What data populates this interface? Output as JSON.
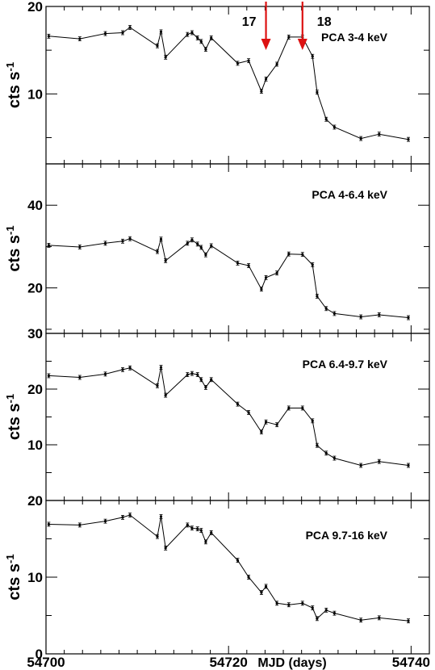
{
  "chart_data": {
    "type": "line",
    "x_axis": {
      "label": "MJD (days)",
      "range": [
        54700,
        54742
      ],
      "tick_labels": [
        "54700",
        "54720",
        "54740"
      ],
      "ticks": [
        54700,
        54720,
        54740
      ]
    },
    "x": [
      54700.3,
      54703.7,
      54706.5,
      54708.4,
      54709.2,
      54712.2,
      54712.6,
      54713.1,
      54715.5,
      54716.0,
      54716.6,
      54717.0,
      54717.5,
      54718.1,
      54721.0,
      54722.2,
      54723.6,
      54724.1,
      54725.3,
      54726.6,
      54728.1,
      54729.2,
      54729.7,
      54730.7,
      54731.6,
      54734.5,
      54736.5,
      54739.7
    ],
    "arrows": [
      {
        "label": "17",
        "x": 54724.1,
        "color": "#dd1111"
      },
      {
        "label": "18",
        "x": 54728.1,
        "color": "#dd1111"
      }
    ],
    "panels": [
      {
        "label": "PCA 3-4 keV",
        "ylabel": "cts s",
        "ylabel_exp": "-1",
        "ylim": [
          2,
          20
        ],
        "yticks": [
          10,
          20
        ],
        "ytick_labels": [
          "10",
          "20"
        ],
        "values": [
          16.6,
          16.3,
          16.9,
          17.0,
          17.6,
          15.5,
          17.1,
          14.2,
          16.8,
          17.0,
          16.4,
          16.0,
          15.1,
          16.4,
          13.5,
          13.8,
          10.3,
          11.7,
          13.4,
          16.5,
          16.5,
          14.3,
          10.2,
          7.1,
          6.2,
          4.9,
          5.4,
          4.8
        ]
      },
      {
        "label": "PCA 4-6.4 keV",
        "ylabel": "cts s",
        "ylabel_exp": "-1",
        "ylim": [
          9,
          50
        ],
        "yticks": [
          20,
          40
        ],
        "ytick_labels": [
          "20",
          "40"
        ],
        "values": [
          30.3,
          29.9,
          30.8,
          31.3,
          31.9,
          28.8,
          31.8,
          26.6,
          30.8,
          31.6,
          30.6,
          29.8,
          28.0,
          30.2,
          26.0,
          25.4,
          19.7,
          22.5,
          23.6,
          28.2,
          28.1,
          25.6,
          18.0,
          15.0,
          13.8,
          13.0,
          13.5,
          12.8
        ]
      },
      {
        "label": "PCA 6.4-9.7 keV",
        "ylabel": "cts s",
        "ylabel_exp": "-1",
        "ylim": [
          0,
          30
        ],
        "yticks": [
          10,
          20,
          30
        ],
        "ytick_labels": [
          "10",
          "20",
          "30"
        ],
        "values": [
          22.4,
          22.1,
          22.7,
          23.5,
          23.8,
          20.6,
          23.9,
          18.9,
          22.6,
          22.8,
          22.6,
          21.7,
          20.3,
          21.7,
          17.3,
          15.8,
          12.3,
          14.1,
          13.6,
          16.6,
          16.6,
          14.3,
          9.9,
          8.5,
          7.6,
          6.3,
          7.0,
          6.3
        ]
      },
      {
        "label": "PCA 9.7-16 keV",
        "ylabel": "cts s",
        "ylabel_exp": "-1",
        "ylim": [
          0,
          20
        ],
        "yticks": [
          0,
          10,
          20
        ],
        "ytick_labels": [
          "0",
          "10",
          "20"
        ],
        "values": [
          16.9,
          16.8,
          17.3,
          17.8,
          18.1,
          15.3,
          17.9,
          13.8,
          16.8,
          16.4,
          16.3,
          16.1,
          14.6,
          15.8,
          12.2,
          10.0,
          8.0,
          8.8,
          6.6,
          6.4,
          6.6,
          6.0,
          4.6,
          5.7,
          5.3,
          4.4,
          4.7,
          4.3
        ]
      }
    ]
  }
}
